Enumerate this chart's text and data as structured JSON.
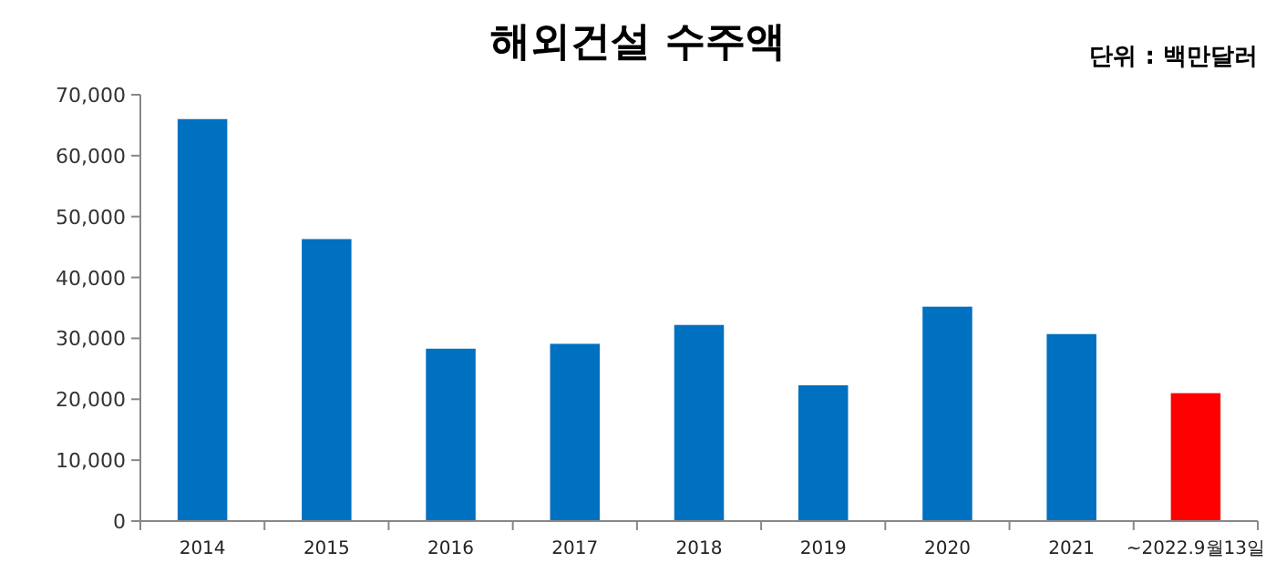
{
  "chart_data": {
    "type": "bar",
    "title": "해외건설 수주액",
    "annotations": [
      "단위 : 백만달러"
    ],
    "categories": [
      "2014",
      "2015",
      "2016",
      "2017",
      "2018",
      "2019",
      "2020",
      "2021",
      "~2022.9월13일"
    ],
    "values": [
      66000,
      46300,
      28300,
      29100,
      32200,
      22300,
      35200,
      30700,
      21000
    ],
    "colors": [
      "#0070c0",
      "#0070c0",
      "#0070c0",
      "#0070c0",
      "#0070c0",
      "#0070c0",
      "#0070c0",
      "#0070c0",
      "#ff0000"
    ],
    "ylim": [
      0,
      70000
    ],
    "yticks": [
      {
        "value": 0,
        "label": "0"
      },
      {
        "value": 10000,
        "label": "10,000"
      },
      {
        "value": 20000,
        "label": "20,000"
      },
      {
        "value": 30000,
        "label": "30,000"
      },
      {
        "value": 40000,
        "label": "40,000"
      },
      {
        "value": 50000,
        "label": "50,000"
      },
      {
        "value": 60000,
        "label": "60,000"
      },
      {
        "value": 70000,
        "label": "70,000"
      }
    ]
  }
}
